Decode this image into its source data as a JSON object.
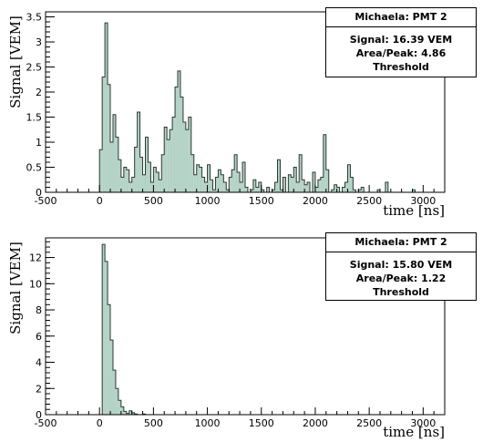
{
  "chart_data": [
    {
      "type": "bar",
      "xlabel": "time [ns]",
      "ylabel": "Signal [VEM]",
      "xlim": [
        -500,
        3200
      ],
      "ylim": [
        0,
        3.6
      ],
      "x_ticks": [
        -500,
        0,
        500,
        1000,
        1500,
        2000,
        2500,
        3000
      ],
      "y_ticks": [
        0,
        0.5,
        1,
        1.5,
        2,
        2.5,
        3,
        3.5
      ],
      "y_tick_labels": [
        "0",
        "0.5",
        "1",
        "1.5",
        "2",
        "2.5",
        "3",
        "3.5"
      ],
      "bin_width": 25,
      "x_start": 0,
      "fill_color": "#b4d2c6",
      "stats": {
        "title": "Michaela: PMT 2",
        "signal": "Signal: 16.39 VEM",
        "area_peak": "Area/Peak: 4.86",
        "threshold": "Threshold"
      },
      "values": [
        0.85,
        2.3,
        3.38,
        2.15,
        1.0,
        1.55,
        1.1,
        0.65,
        0.3,
        0.5,
        0.45,
        0.2,
        0.3,
        0.9,
        1.6,
        0.7,
        0.35,
        1.1,
        0.6,
        0.2,
        0.5,
        0.4,
        0.25,
        0.75,
        1.3,
        1.05,
        1.25,
        1.5,
        2.1,
        2.42,
        1.9,
        1.4,
        1.25,
        1.5,
        0.75,
        0.35,
        0.55,
        0.5,
        0.3,
        0.2,
        0.55,
        0.25,
        0.05,
        0.3,
        0.45,
        0.35,
        0.2,
        0.05,
        0.3,
        0.45,
        0.75,
        0.4,
        0.2,
        0.6,
        0.1,
        0.0,
        0.05,
        0.25,
        0.1,
        0.2,
        0.05,
        0.0,
        0.1,
        0.0,
        0.05,
        0.2,
        0.65,
        0.05,
        0.3,
        0.0,
        0.35,
        0.3,
        0.5,
        0.2,
        0.75,
        0.25,
        0.15,
        0.2,
        0.0,
        0.4,
        0.1,
        0.25,
        0.3,
        1.15,
        0.45,
        0.0,
        0.05,
        0.15,
        0.1,
        0.0,
        0.1,
        0.2,
        0.55,
        0.3,
        0.05,
        0.0,
        0.05,
        0.1,
        0.0,
        0.0,
        0.0,
        0.0,
        0.0,
        0.05,
        0.0,
        0.0,
        0.2,
        0.0,
        0.0,
        0.0,
        0.0,
        0.0,
        0.0,
        0.0,
        0.0,
        0.0,
        0.05,
        0.0,
        0.0,
        0.0,
        0.0
      ]
    },
    {
      "type": "bar",
      "xlabel": "time [ns]",
      "ylabel": "Signal [VEM]",
      "xlim": [
        -500,
        3200
      ],
      "ylim": [
        0,
        13.5
      ],
      "x_ticks": [
        -500,
        0,
        500,
        1000,
        1500,
        2000,
        2500,
        3000
      ],
      "y_ticks": [
        0,
        2,
        4,
        6,
        8,
        10,
        12
      ],
      "y_tick_labels": [
        "0",
        "2",
        "4",
        "6",
        "8",
        "10",
        "12"
      ],
      "bin_width": 25,
      "x_start": 0,
      "fill_color": "#b4d2c6",
      "stats": {
        "title": "Michaela: PMT 2",
        "signal": "Signal: 15.80 VEM",
        "area_peak": "Area/Peak: 1.22",
        "threshold": "Threshold"
      },
      "values": [
        0.0,
        13.0,
        11.7,
        8.4,
        5.7,
        3.4,
        2.0,
        1.1,
        0.6,
        0.25,
        0.1,
        0.3,
        0.15,
        0.05,
        0.0,
        0.0,
        0.05,
        0.0,
        0.0,
        0.0,
        0.0
      ]
    }
  ]
}
